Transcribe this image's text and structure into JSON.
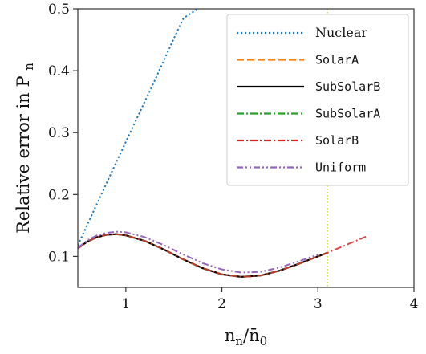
{
  "chart_data": {
    "type": "line",
    "title": "",
    "xlabel": "n_n / n̄_0",
    "xlabel_parts": {
      "main": "n",
      "sub": "n",
      "sep": "/",
      "bar": "n̄",
      "sub2": "0"
    },
    "ylabel": "Relative error in P",
    "ylabel_sub": "n",
    "xlim": [
      0.5,
      4.0
    ],
    "ylim": [
      0.05,
      0.5
    ],
    "xticks": [
      1,
      2,
      3,
      4
    ],
    "xtick_labels": [
      "1",
      "2",
      "3",
      "4"
    ],
    "yticks": [
      0.1,
      0.2,
      0.3,
      0.4,
      0.5
    ],
    "ytick_labels": [
      "0.1",
      "0.2",
      "0.3",
      "0.4",
      "0.5"
    ],
    "grid": false,
    "legend_position": "top-right",
    "reference_line": {
      "x": 3.1,
      "color": "#d8dc6a",
      "style": "dotted"
    },
    "series": [
      {
        "name": "Nuclear",
        "color": "#1f77b4",
        "dash": "dotted",
        "font": "serif",
        "x": [
          0.5,
          0.7,
          0.9,
          1.1,
          1.3,
          1.5,
          1.6,
          1.75
        ],
        "y": [
          0.118,
          0.185,
          0.252,
          0.318,
          0.384,
          0.452,
          0.485,
          0.5
        ]
      },
      {
        "name": "SolarA",
        "color": "#ff7f0e",
        "dash": "dashed",
        "font": "mono",
        "x": [
          0.5,
          0.6,
          0.7,
          0.8,
          0.9,
          1.0,
          1.2,
          1.4,
          1.6,
          1.8,
          2.0,
          2.2,
          2.4,
          2.6,
          2.8,
          3.0,
          3.1
        ],
        "y": [
          0.113,
          0.124,
          0.131,
          0.135,
          0.136,
          0.134,
          0.125,
          0.111,
          0.095,
          0.081,
          0.071,
          0.067,
          0.069,
          0.077,
          0.088,
          0.1,
          0.106
        ]
      },
      {
        "name": "SubSolarB",
        "color": "#000000",
        "dash": "solid",
        "font": "mono",
        "x": [
          0.5,
          0.6,
          0.7,
          0.8,
          0.9,
          1.0,
          1.2,
          1.4,
          1.6,
          1.8,
          2.0,
          2.2,
          2.4,
          2.6,
          2.8,
          3.0,
          3.1
        ],
        "y": [
          0.113,
          0.124,
          0.131,
          0.135,
          0.136,
          0.134,
          0.125,
          0.111,
          0.095,
          0.081,
          0.071,
          0.067,
          0.069,
          0.077,
          0.088,
          0.1,
          0.106
        ]
      },
      {
        "name": "SubSolarA",
        "color": "#2ca02c",
        "dash": "dashdot",
        "font": "mono",
        "x": [
          0.5,
          0.6,
          0.7,
          0.8,
          0.9,
          1.0,
          1.2,
          1.4,
          1.6,
          1.8,
          2.0,
          2.2,
          2.4,
          2.6,
          2.8,
          3.0,
          3.1
        ],
        "y": [
          0.113,
          0.124,
          0.131,
          0.135,
          0.136,
          0.134,
          0.125,
          0.111,
          0.095,
          0.081,
          0.071,
          0.067,
          0.069,
          0.077,
          0.088,
          0.1,
          0.106
        ]
      },
      {
        "name": "SolarB",
        "color": "#d62728",
        "dash": "dashdot",
        "font": "mono",
        "x": [
          0.5,
          0.6,
          0.7,
          0.8,
          0.9,
          1.0,
          1.2,
          1.4,
          1.6,
          1.8,
          2.0,
          2.2,
          2.4,
          2.6,
          2.8,
          3.0,
          3.1,
          3.3,
          3.5
        ],
        "y": [
          0.113,
          0.124,
          0.131,
          0.135,
          0.136,
          0.134,
          0.125,
          0.111,
          0.095,
          0.081,
          0.071,
          0.067,
          0.069,
          0.077,
          0.088,
          0.1,
          0.106,
          0.119,
          0.132
        ]
      },
      {
        "name": "Uniform",
        "color": "#9467bd",
        "dash": "dashdotdot",
        "font": "mono",
        "x": [
          0.5,
          0.6,
          0.7,
          0.8,
          0.9,
          1.0,
          1.2,
          1.4,
          1.6,
          1.8,
          2.0,
          2.2,
          2.4,
          2.6,
          2.8,
          3.0
        ],
        "y": [
          0.114,
          0.126,
          0.134,
          0.138,
          0.14,
          0.139,
          0.131,
          0.118,
          0.103,
          0.089,
          0.079,
          0.074,
          0.075,
          0.082,
          0.092,
          0.103
        ]
      }
    ]
  }
}
